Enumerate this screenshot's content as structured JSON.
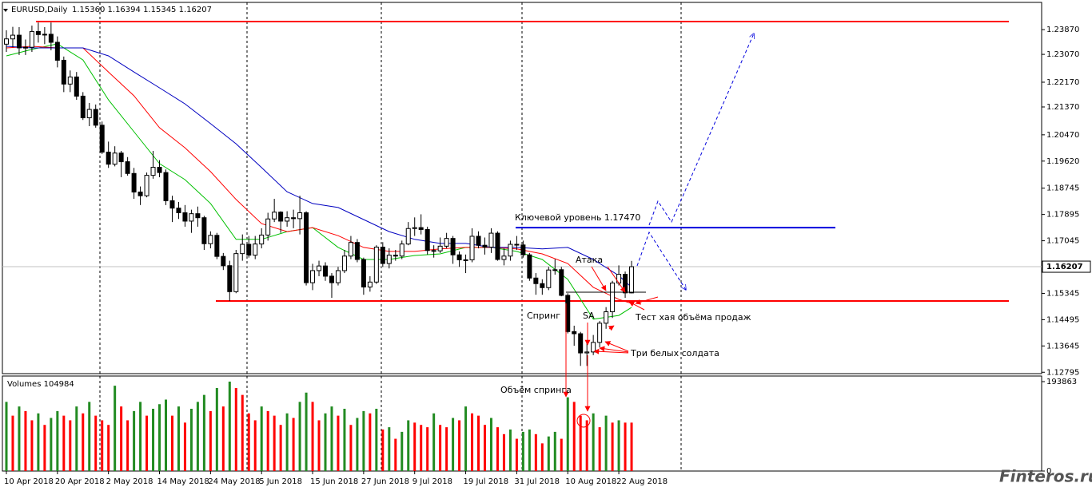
{
  "chart_data": {
    "type": "candlestick",
    "symbol": "EURUSD,Daily",
    "ohlc_text": "1.15360 1.16394 1.15345 1.16207",
    "ylim": [
      1.1275,
      1.2475
    ],
    "yticks": [
      {
        "value": 1.2387,
        "label": "1.23870"
      },
      {
        "value": 1.2307,
        "label": "1.23070"
      },
      {
        "value": 1.2217,
        "label": "1.22170"
      },
      {
        "value": 1.2137,
        "label": "1.21370"
      },
      {
        "value": 1.2047,
        "label": "1.20470"
      },
      {
        "value": 1.1962,
        "label": "1.19620"
      },
      {
        "value": 1.18745,
        "label": "1.18745"
      },
      {
        "value": 1.17895,
        "label": "1.17895"
      },
      {
        "value": 1.17045,
        "label": "1.17045"
      },
      {
        "value": 1.15345,
        "label": "1.15345"
      },
      {
        "value": 1.14495,
        "label": "1.14495"
      },
      {
        "value": 1.13645,
        "label": "1.13645"
      },
      {
        "value": 1.12795,
        "label": "1.12795"
      }
    ],
    "xticks": [
      {
        "value": 0,
        "label": "10 Apr 2018"
      },
      {
        "value": 8,
        "label": "20 Apr 2018"
      },
      {
        "value": 16,
        "label": "2 May 2018"
      },
      {
        "value": 24,
        "label": "14 May 2018"
      },
      {
        "value": 32,
        "label": "24 May 2018"
      },
      {
        "value": 40,
        "label": "5 Jun 2018"
      },
      {
        "value": 48,
        "label": "15 Jun 2018"
      },
      {
        "value": 56,
        "label": "27 Jun 2018"
      },
      {
        "value": 64,
        "label": "9 Jul 2018"
      },
      {
        "value": 72,
        "label": "19 Jul 2018"
      },
      {
        "value": 80,
        "label": "31 Jul 2018"
      },
      {
        "value": 88,
        "label": "10 Aug 2018"
      },
      {
        "value": 96,
        "label": "22 Aug 2018"
      }
    ],
    "open": [
      1.234,
      1.2357,
      1.2369,
      1.2328,
      1.233,
      1.2381,
      1.2371,
      1.2372,
      1.2346,
      1.2288,
      1.2211,
      1.2234,
      1.2172,
      1.2102,
      1.2129,
      1.2078,
      1.1991,
      1.1952,
      1.1988,
      1.196,
      1.1922,
      1.1862,
      1.185,
      1.1916,
      1.1942,
      1.1925,
      1.1834,
      1.181,
      1.1795,
      1.1768,
      1.1792,
      1.1779,
      1.1695,
      1.1722,
      1.1654,
      1.1624,
      1.154,
      1.1663,
      1.1693,
      1.1658,
      1.1694,
      1.1723,
      1.1775,
      1.1797,
      1.1768,
      1.1779,
      1.1776,
      1.1795,
      1.1569,
      1.1608,
      1.1623,
      1.159,
      1.1569,
      1.1608,
      1.1655,
      1.1699,
      1.1644,
      1.1555,
      1.1571,
      1.1684,
      1.1631,
      1.1658,
      1.1655,
      1.1694,
      1.1744,
      1.1747,
      1.1741,
      1.1673,
      1.1672,
      1.1687,
      1.1712,
      1.1659,
      1.1643,
      1.1643,
      1.1719,
      1.169,
      1.1684,
      1.1729,
      1.1644,
      1.1655,
      1.1693,
      1.1691,
      1.1659,
      1.1584,
      1.1566,
      1.1553,
      1.161,
      1.1611,
      1.1528,
      1.1411,
      1.1404,
      1.1342,
      1.1345,
      1.1376,
      1.1438,
      1.1475,
      1.1568,
      1.1596,
      1.1536
    ],
    "high": [
      1.2385,
      1.2396,
      1.2395,
      1.2355,
      1.24,
      1.241,
      1.2395,
      1.241,
      1.2365,
      1.23,
      1.2255,
      1.225,
      1.2185,
      1.215,
      1.2145,
      1.209,
      1.2025,
      1.201,
      1.1995,
      1.1975,
      1.194,
      1.188,
      1.1925,
      1.1995,
      1.1965,
      1.1935,
      1.185,
      1.183,
      1.182,
      1.1805,
      1.1815,
      1.1785,
      1.1735,
      1.173,
      1.1665,
      1.164,
      1.1675,
      1.1725,
      1.172,
      1.172,
      1.1745,
      1.1795,
      1.184,
      1.18,
      1.18,
      1.1805,
      1.185,
      1.18,
      1.163,
      1.164,
      1.1635,
      1.16,
      1.162,
      1.1675,
      1.172,
      1.171,
      1.165,
      1.159,
      1.169,
      1.17,
      1.168,
      1.1675,
      1.1705,
      1.1765,
      1.178,
      1.179,
      1.175,
      1.169,
      1.1715,
      1.173,
      1.172,
      1.167,
      1.166,
      1.1745,
      1.1735,
      1.1715,
      1.1745,
      1.1735,
      1.168,
      1.1705,
      1.172,
      1.1705,
      1.1665,
      1.16,
      1.158,
      1.162,
      1.1645,
      1.162,
      1.1535,
      1.143,
      1.141,
      1.138,
      1.14,
      1.1445,
      1.149,
      1.1575,
      1.1625,
      1.1605,
      1.16394
    ],
    "low": [
      1.2315,
      1.233,
      1.2305,
      1.2305,
      1.2315,
      1.2345,
      1.234,
      1.232,
      1.2265,
      1.2185,
      1.2185,
      1.216,
      1.2095,
      1.2075,
      1.207,
      1.1985,
      1.194,
      1.1945,
      1.191,
      1.1915,
      1.184,
      1.182,
      1.1845,
      1.1905,
      1.191,
      1.182,
      1.1765,
      1.1775,
      1.175,
      1.173,
      1.175,
      1.1675,
      1.168,
      1.1645,
      1.161,
      1.151,
      1.1535,
      1.164,
      1.165,
      1.1645,
      1.168,
      1.1705,
      1.1765,
      1.173,
      1.175,
      1.1745,
      1.1725,
      1.156,
      1.1545,
      1.159,
      1.1575,
      1.152,
      1.156,
      1.16,
      1.1645,
      1.1635,
      1.153,
      1.154,
      1.1565,
      1.162,
      1.1615,
      1.164,
      1.1645,
      1.169,
      1.172,
      1.1725,
      1.166,
      1.165,
      1.1665,
      1.168,
      1.163,
      1.162,
      1.16,
      1.1635,
      1.168,
      1.166,
      1.1665,
      1.164,
      1.1625,
      1.164,
      1.1675,
      1.165,
      1.1575,
      1.153,
      1.153,
      1.1545,
      1.1595,
      1.1525,
      1.1405,
      1.1365,
      1.13,
      1.13,
      1.1335,
      1.136,
      1.142,
      1.1455,
      1.156,
      1.152,
      1.15345
    ],
    "close": [
      1.2357,
      1.2369,
      1.2328,
      1.233,
      1.2381,
      1.2371,
      1.2372,
      1.2346,
      1.2288,
      1.2211,
      1.2234,
      1.2172,
      1.2102,
      1.2129,
      1.2078,
      1.1991,
      1.1952,
      1.1988,
      1.196,
      1.1922,
      1.1862,
      1.185,
      1.1916,
      1.1942,
      1.1925,
      1.1834,
      1.181,
      1.1795,
      1.1768,
      1.1792,
      1.1779,
      1.1695,
      1.1722,
      1.1654,
      1.1624,
      1.154,
      1.1663,
      1.1693,
      1.1658,
      1.1694,
      1.1723,
      1.1775,
      1.1797,
      1.1768,
      1.1779,
      1.1776,
      1.1795,
      1.1569,
      1.1608,
      1.1623,
      1.159,
      1.1569,
      1.1608,
      1.1655,
      1.1699,
      1.1644,
      1.1555,
      1.1571,
      1.1684,
      1.1631,
      1.1658,
      1.1655,
      1.1694,
      1.1744,
      1.1747,
      1.1741,
      1.1673,
      1.1672,
      1.1687,
      1.1712,
      1.1659,
      1.1643,
      1.1643,
      1.1719,
      1.169,
      1.1684,
      1.1729,
      1.1644,
      1.1655,
      1.1693,
      1.1691,
      1.1659,
      1.1584,
      1.1566,
      1.1553,
      1.161,
      1.1611,
      1.1528,
      1.1411,
      1.1404,
      1.1342,
      1.1345,
      1.1376,
      1.1438,
      1.1475,
      1.1568,
      1.1596,
      1.1536,
      1.16207
    ],
    "ma_lines": [
      {
        "color": "#00c000",
        "x": [
          0,
          4,
          8,
          12,
          16,
          20,
          24,
          28,
          32,
          36,
          40,
          44,
          48,
          52,
          56,
          60,
          64,
          68,
          72,
          76,
          80,
          84,
          88,
          92,
          96,
          98
        ],
        "values": [
          1.2302,
          1.2323,
          1.2341,
          1.2289,
          1.216,
          1.2057,
          1.1954,
          1.1902,
          1.1825,
          1.1709,
          1.1709,
          1.1734,
          1.1747,
          1.1683,
          1.1644,
          1.1644,
          1.1657,
          1.1662,
          1.1683,
          1.1683,
          1.167,
          1.1644,
          1.158,
          1.1451,
          1.1463,
          1.1489
        ]
      },
      {
        "color": "#ff0000",
        "x": [
          0,
          4,
          8,
          12,
          16,
          20,
          24,
          28,
          32,
          36,
          40,
          44,
          48,
          52,
          56,
          60,
          64,
          68,
          72,
          76,
          80,
          84,
          88,
          92,
          96,
          98
        ],
        "values": [
          1.2328,
          1.2333,
          1.2328,
          1.2328,
          1.225,
          1.2173,
          1.207,
          1.2005,
          1.1928,
          1.1838,
          1.176,
          1.1734,
          1.1747,
          1.1721,
          1.1683,
          1.167,
          1.167,
          1.1678,
          1.1683,
          1.1683,
          1.1678,
          1.1662,
          1.1631,
          1.1554,
          1.1515,
          1.1502
        ]
      },
      {
        "color": "#0000c0",
        "x": [
          0,
          4,
          8,
          12,
          16,
          20,
          24,
          28,
          32,
          36,
          40,
          44,
          48,
          52,
          56,
          60,
          64,
          68,
          72,
          76,
          80,
          84,
          88,
          92,
          96,
          98
        ],
        "values": [
          1.2333,
          1.2328,
          1.2328,
          1.2328,
          1.2302,
          1.225,
          1.2199,
          1.2147,
          1.2083,
          1.2018,
          1.1941,
          1.1863,
          1.1825,
          1.1812,
          1.1773,
          1.1734,
          1.1709,
          1.1696,
          1.1696,
          1.1683,
          1.1683,
          1.1678,
          1.1683,
          1.1644,
          1.1592,
          1.1554
        ]
      }
    ],
    "levels": [
      {
        "value": 1.2413,
        "color": "#ff0000"
      },
      {
        "value": 1.151,
        "color": "#ff0000"
      },
      {
        "value": 1.1747,
        "color": "#0000dd"
      }
    ],
    "volume_title": "Volumes",
    "volume_ylim": [
      0,
      193863
    ],
    "volume_yticks": [
      193863,
      0
    ],
    "volumes": [
      150000,
      120000,
      140000,
      130000,
      110000,
      125000,
      100000,
      115000,
      130000,
      120000,
      110000,
      140000,
      125000,
      150000,
      120000,
      110000,
      100000,
      185000,
      140000,
      110000,
      130000,
      150000,
      120000,
      135000,
      145000,
      155000,
      120000,
      140000,
      105000,
      135000,
      150000,
      165000,
      130000,
      180000,
      140000,
      193863,
      180000,
      165000,
      125000,
      110000,
      140000,
      130000,
      120000,
      100000,
      125000,
      115000,
      150000,
      170000,
      150000,
      110000,
      125000,
      140000,
      120000,
      135000,
      100000,
      115000,
      130000,
      125000,
      135000,
      90000,
      95000,
      70000,
      85000,
      110000,
      105000,
      100000,
      95000,
      125000,
      100000,
      95000,
      115000,
      110000,
      140000,
      125000,
      120000,
      100000,
      115000,
      95000,
      80000,
      90000,
      70000,
      85000,
      90000,
      80000,
      60000,
      75000,
      85000,
      70000,
      160000,
      150000,
      120000,
      110000,
      125000,
      95000,
      120000,
      105000,
      110000,
      105000,
      104984
    ],
    "annotations": {
      "key_level": "Ключевой уровень  1.17470",
      "attack": "Атака",
      "spring": "Спринг",
      "sa": "SA",
      "test": "Тест хая объёма продаж",
      "soldiers": "Три белых солдата",
      "spring_volume": "Объём спринга"
    },
    "watermark": "Finteros.ru"
  }
}
